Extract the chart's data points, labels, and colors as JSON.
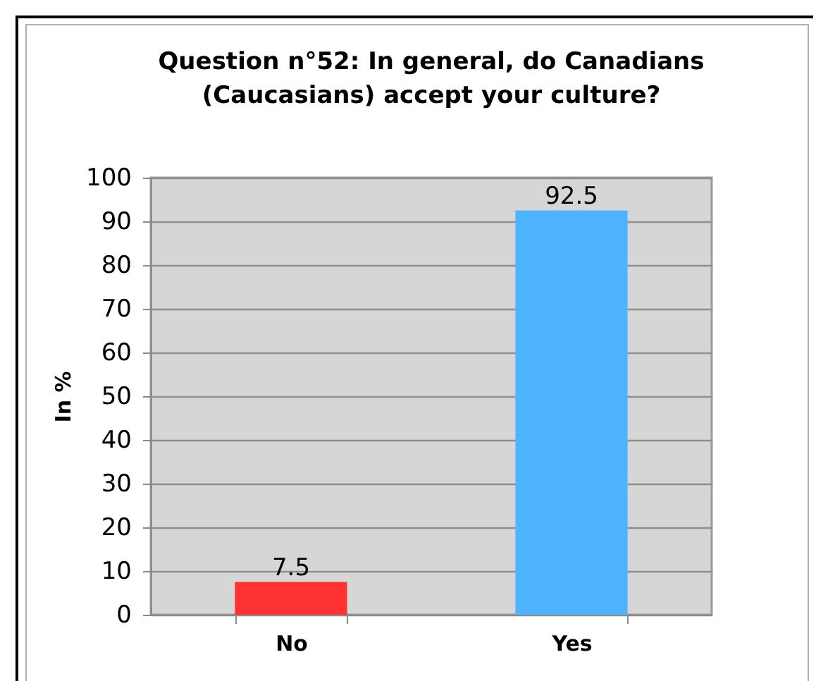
{
  "chart_data": {
    "type": "bar",
    "title": "Question n°52: In general, do Canadians (Caucasians) accept your culture?",
    "ylabel": "In %",
    "categories": [
      "No",
      "Yes"
    ],
    "values": [
      7.5,
      92.5
    ],
    "colors": [
      "#ff3333",
      "#4fb4ff"
    ],
    "ylim": [
      0,
      100
    ],
    "yticks": [
      0,
      10,
      20,
      30,
      40,
      50,
      60,
      70,
      80,
      90,
      100
    ],
    "grid": "y",
    "data_labels": true
  }
}
